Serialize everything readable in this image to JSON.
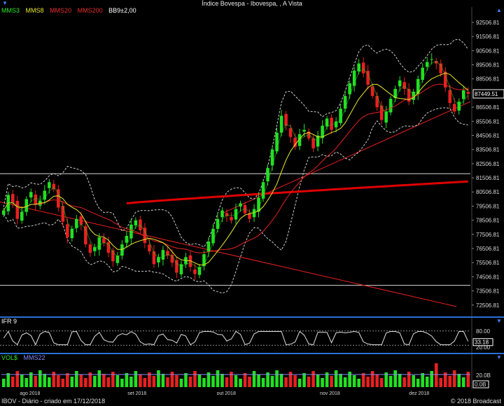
{
  "window": {
    "title": "Índice Bovespa - Ibovespa, , A Vista"
  },
  "legend_main": [
    {
      "label": "MMS3",
      "color": "#2ee82e"
    },
    {
      "label": "MMS8",
      "color": "#e8e82e"
    },
    {
      "label": "MMS20",
      "color": "#e82e2e"
    },
    {
      "label": "MMS200",
      "color": "#e82e2e"
    },
    {
      "label": "BB9±2,00",
      "color": "#ffffff"
    }
  ],
  "price_axis": [
    "92506.81",
    "91506.81",
    "90506.81",
    "89506.81",
    "88506.81",
    "87449.51",
    "86506.81",
    "85506.81",
    "84506.81",
    "83506.81",
    "82506.81",
    "81506.81",
    "80506.81",
    "79506.81",
    "78506.81",
    "77506.81",
    "76506.81",
    "75506.81",
    "74506.81",
    "73506.81",
    "72506.81"
  ],
  "last_price": "87449.51",
  "ifr": {
    "label": "IFR 9",
    "axis": [
      "80.00",
      "20.00"
    ],
    "value": "33.18"
  },
  "vol": {
    "label": "VOL$",
    "ma_label": "MMS22",
    "axis": [
      "20.0B",
      "0.0B"
    ]
  },
  "time_axis": [
    "ago 2018",
    "set 2018",
    "out 2018",
    "nov 2018",
    "dez 2018"
  ],
  "footer": {
    "left": "IBOV - Diário - criado em 17/12/2018",
    "right": "© 2018 Broadcast"
  },
  "chart_data": {
    "type": "candlestick",
    "title": "Índice Bovespa - Ibovespa, , A Vista",
    "ylim": [
      72000,
      93000
    ],
    "close": [
      79200,
      80300,
      79700,
      78600,
      79100,
      80000,
      80500,
      79600,
      79900,
      80600,
      81200,
      80700,
      79400,
      78400,
      77300,
      77900,
      78600,
      78200,
      76800,
      76200,
      76600,
      77300,
      76900,
      76200,
      75600,
      76000,
      76800,
      77400,
      78200,
      78500,
      77800,
      76900,
      76300,
      75400,
      75900,
      76400,
      76000,
      75500,
      74800,
      75400,
      75900,
      75200,
      74700,
      75200,
      76100,
      77000,
      77900,
      78600,
      79200,
      78800,
      78500,
      79300,
      79700,
      79000,
      78600,
      79300,
      80100,
      81200,
      82200,
      83500,
      84700,
      85900,
      85200,
      84400,
      83700,
      84600,
      84900,
      84300,
      83600,
      84500,
      85200,
      85700,
      84900,
      85500,
      86400,
      87300,
      88200,
      89100,
      89600,
      88900,
      88100,
      87300,
      86500,
      85600,
      86200,
      87100,
      87800,
      88400,
      87800,
      86900,
      87600,
      88500,
      89300,
      89700,
      89900,
      89600,
      88900,
      87900,
      86800,
      86200,
      86900,
      87700,
      87449
    ]
  }
}
